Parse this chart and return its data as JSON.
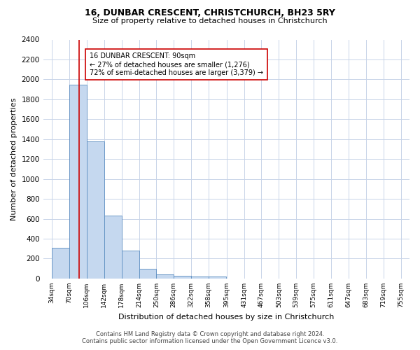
{
  "title": "16, DUNBAR CRESCENT, CHRISTCHURCH, BH23 5RY",
  "subtitle": "Size of property relative to detached houses in Christchurch",
  "xlabel": "Distribution of detached houses by size in Christchurch",
  "ylabel": "Number of detached properties",
  "bar_edges": [
    34,
    70,
    106,
    142,
    178,
    214,
    250,
    286,
    322,
    358,
    395,
    431,
    467,
    503,
    539,
    575,
    611,
    647,
    683,
    719,
    755
  ],
  "bar_heights": [
    310,
    1950,
    1380,
    630,
    280,
    100,
    40,
    30,
    20,
    20,
    0,
    0,
    0,
    0,
    0,
    0,
    0,
    0,
    0,
    0
  ],
  "bar_color": "#c5d8ef",
  "bar_edge_color": "#5b8dc0",
  "property_line_x": 90,
  "property_line_color": "#cc0000",
  "annotation_line1": "16 DUNBAR CRESCENT: 90sqm",
  "annotation_line2": "← 27% of detached houses are smaller (1,276)",
  "annotation_line3": "72% of semi-detached houses are larger (3,379) →",
  "annotation_box_color": "#ffffff",
  "annotation_box_edge_color": "#cc0000",
  "ylim": [
    0,
    2400
  ],
  "yticks": [
    0,
    200,
    400,
    600,
    800,
    1000,
    1200,
    1400,
    1600,
    1800,
    2000,
    2200,
    2400
  ],
  "tick_labels": [
    "34sqm",
    "70sqm",
    "106sqm",
    "142sqm",
    "178sqm",
    "214sqm",
    "250sqm",
    "286sqm",
    "322sqm",
    "358sqm",
    "395sqm",
    "431sqm",
    "467sqm",
    "503sqm",
    "539sqm",
    "575sqm",
    "611sqm",
    "647sqm",
    "683sqm",
    "719sqm",
    "755sqm"
  ],
  "footer_line1": "Contains HM Land Registry data © Crown copyright and database right 2024.",
  "footer_line2": "Contains public sector information licensed under the Open Government Licence v3.0.",
  "bg_color": "#ffffff",
  "grid_color": "#c8d4e8",
  "title_fontsize": 9,
  "subtitle_fontsize": 8,
  "ylabel_fontsize": 8,
  "xlabel_fontsize": 8,
  "ytick_fontsize": 7.5,
  "xtick_fontsize": 6.5,
  "annotation_fontsize": 7,
  "footer_fontsize": 6
}
